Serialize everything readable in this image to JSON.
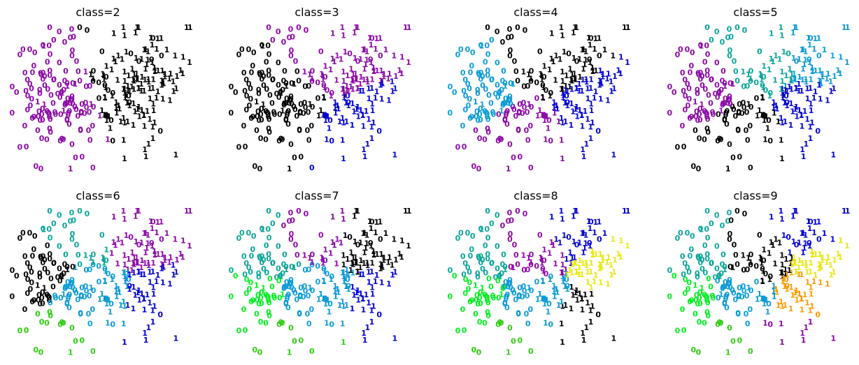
{
  "chart_data": {
    "type": "scatter",
    "description_free": true,
    "marker_type": "digit-glyph",
    "grid": false,
    "axes_visible": false,
    "legend": "none",
    "color_palette": {
      "black": "#000000",
      "purple": "#8b0aa5",
      "blue": "#0000d0",
      "cyan": "#0c9bd6",
      "teal": "#0aa598",
      "green": "#2fcd10",
      "lime": "#00f020",
      "yellow": "#e8e810",
      "orange": "#ff9a00"
    },
    "panels": [
      {
        "title": "class=2",
        "k": 2,
        "cluster_colors": [
          "#000000",
          "#8b0aa5"
        ]
      },
      {
        "title": "class=3",
        "k": 3,
        "cluster_colors": [
          "#000000",
          "#8b0aa5",
          "#0000d0"
        ]
      },
      {
        "title": "class=4",
        "k": 4,
        "cluster_colors": [
          "#000000",
          "#8b0aa5",
          "#0000d0",
          "#0c9bd6"
        ]
      },
      {
        "title": "class=5",
        "k": 5,
        "cluster_colors": [
          "#000000",
          "#8b0aa5",
          "#0000d0",
          "#0c9bd6",
          "#0aa598"
        ]
      },
      {
        "title": "class=6",
        "k": 6,
        "cluster_colors": [
          "#000000",
          "#8b0aa5",
          "#0000d0",
          "#0c9bd6",
          "#0aa598",
          "#2fcd10"
        ]
      },
      {
        "title": "class=7",
        "k": 7,
        "cluster_colors": [
          "#000000",
          "#8b0aa5",
          "#0000d0",
          "#0c9bd6",
          "#0aa598",
          "#2fcd10",
          "#00f020"
        ]
      },
      {
        "title": "class=8",
        "k": 8,
        "cluster_colors": [
          "#000000",
          "#8b0aa5",
          "#0000d0",
          "#0c9bd6",
          "#0aa598",
          "#2fcd10",
          "#00f020",
          "#e8e810"
        ]
      },
      {
        "title": "class=9",
        "k": 9,
        "cluster_colors": [
          "#000000",
          "#8b0aa5",
          "#0000d0",
          "#0c9bd6",
          "#0aa598",
          "#2fcd10",
          "#00f020",
          "#e8e810",
          "#ff9a00"
        ]
      }
    ]
  }
}
